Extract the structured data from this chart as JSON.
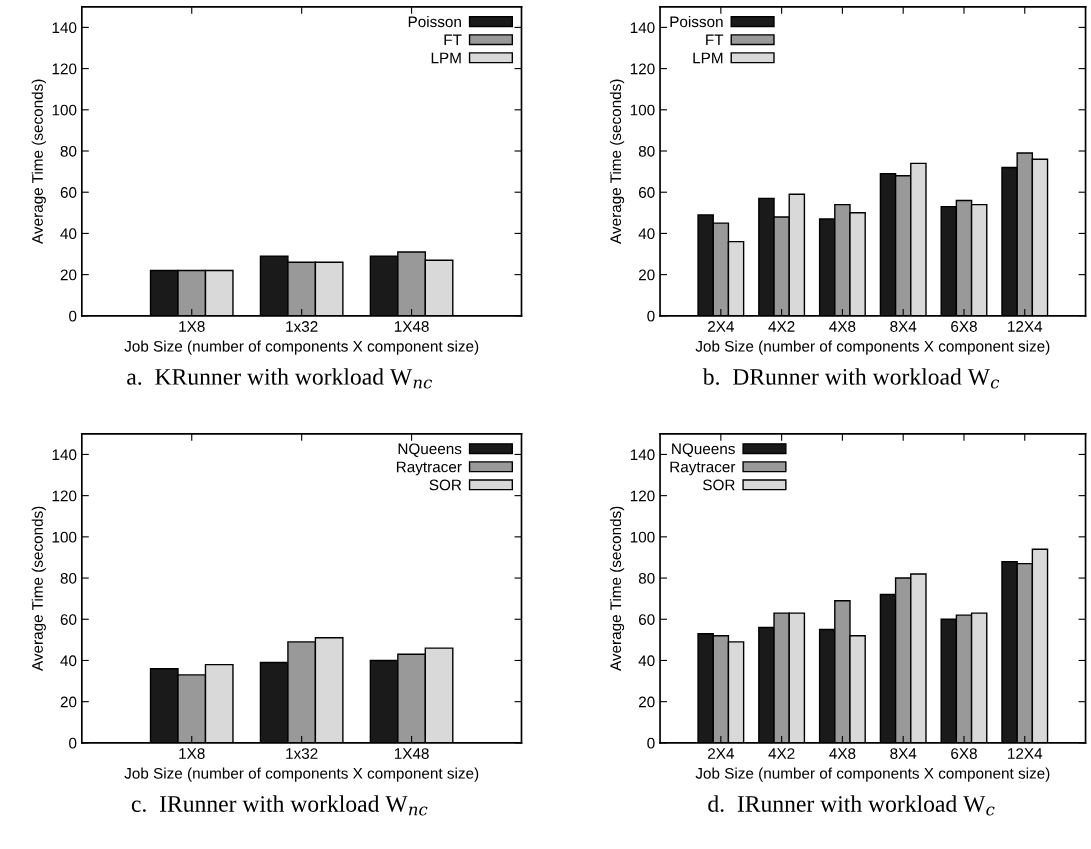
{
  "chart_data": [
    {
      "type": "bar",
      "title": "a.  KRunner with workload W$_{nc}$",
      "xlabel": "Job Size (number of components X component size)",
      "ylabel": "Average Time (seconds)",
      "categories": [
        "1X8",
        "1x32",
        "1X48"
      ],
      "ylim": [
        0,
        150
      ],
      "yticks": [
        0,
        20,
        40,
        60,
        80,
        100,
        120,
        140
      ],
      "legend": "top right",
      "grid": false,
      "series": [
        {
          "name": "Poisson",
          "color": "#1a1a1a",
          "values": [
            22,
            29,
            29
          ]
        },
        {
          "name": "FT",
          "color": "#999999",
          "values": [
            22,
            26,
            31
          ]
        },
        {
          "name": "LPM",
          "color": "#d9d9d9",
          "values": [
            22,
            26,
            27
          ]
        }
      ]
    },
    {
      "type": "bar",
      "title": "b.  DRunner with workload W$_{c}$",
      "xlabel": "Job Size (number of components X component size)",
      "ylabel": "Average Time (seconds)",
      "categories": [
        "2X4",
        "4X2",
        "4X8",
        "8X4",
        "6X8",
        "12X4"
      ],
      "ylim": [
        0,
        150
      ],
      "yticks": [
        0,
        20,
        40,
        60,
        80,
        100,
        120,
        140
      ],
      "legend": "top left",
      "grid": false,
      "series": [
        {
          "name": "Poisson",
          "color": "#1a1a1a",
          "values": [
            49,
            57,
            47,
            69,
            53,
            72
          ]
        },
        {
          "name": "FT",
          "color": "#999999",
          "values": [
            45,
            48,
            54,
            68,
            56,
            79
          ]
        },
        {
          "name": "LPM",
          "color": "#d9d9d9",
          "values": [
            36,
            59,
            50,
            74,
            54,
            76
          ]
        }
      ]
    },
    {
      "type": "bar",
      "title": "c.  IRunner with workload W$_{nc}$",
      "xlabel": "Job Size (number of components X component size)",
      "ylabel": "Average Time (seconds)",
      "categories": [
        "1X8",
        "1x32",
        "1X48"
      ],
      "ylim": [
        0,
        150
      ],
      "yticks": [
        0,
        20,
        40,
        60,
        80,
        100,
        120,
        140
      ],
      "legend": "top right",
      "grid": false,
      "series": [
        {
          "name": "NQueens",
          "color": "#1a1a1a",
          "values": [
            36,
            39,
            40
          ]
        },
        {
          "name": "Raytracer",
          "color": "#999999",
          "values": [
            33,
            49,
            43
          ]
        },
        {
          "name": "SOR",
          "color": "#d9d9d9",
          "values": [
            38,
            51,
            46
          ]
        }
      ]
    },
    {
      "type": "bar",
      "title": "d.  IRunner with workload W$_{c}$",
      "xlabel": "Job Size (number of components X component size)",
      "ylabel": "Average Time (seconds)",
      "categories": [
        "2X4",
        "4X2",
        "4X8",
        "8X4",
        "6X8",
        "12X4"
      ],
      "ylim": [
        0,
        150
      ],
      "yticks": [
        0,
        20,
        40,
        60,
        80,
        100,
        120,
        140
      ],
      "legend": "top left",
      "grid": false,
      "series": [
        {
          "name": "NQueens",
          "color": "#1a1a1a",
          "values": [
            53,
            56,
            55,
            72,
            60,
            88
          ]
        },
        {
          "name": "Raytracer",
          "color": "#999999",
          "values": [
            52,
            63,
            69,
            80,
            62,
            87
          ]
        },
        {
          "name": "SOR",
          "color": "#d9d9d9",
          "values": [
            49,
            63,
            52,
            82,
            63,
            94
          ]
        }
      ]
    }
  ]
}
